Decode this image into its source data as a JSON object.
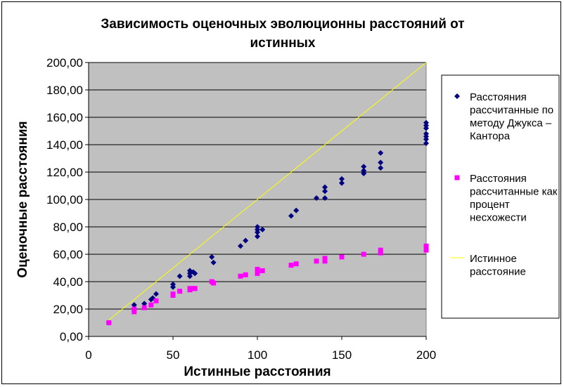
{
  "chart_data": {
    "type": "scatter",
    "title": "Зависимость оценочных эволюционны расстояний от истинных",
    "title_lines": [
      "Зависимость оценочных эволюционны расстояний от",
      "истинных"
    ],
    "xlabel": "Истинные расстояния",
    "ylabel": "Оценочные расстояния",
    "xlim": [
      0,
      200
    ],
    "ylim": [
      0,
      200
    ],
    "x_ticks": [
      0,
      50,
      100,
      150,
      200
    ],
    "x_tick_labels": [
      "0",
      "50",
      "100",
      "150",
      "200"
    ],
    "y_ticks": [
      0,
      20,
      40,
      60,
      80,
      100,
      120,
      140,
      160,
      180,
      200
    ],
    "y_tick_labels": [
      "0,00",
      "20,00",
      "40,00",
      "60,00",
      "80,00",
      "100,00",
      "120,00",
      "140,00",
      "160,00",
      "180,00",
      "200,00"
    ],
    "grid": "horizontal",
    "plot_background": "#c0c0c0",
    "legend_position": "right",
    "series": [
      {
        "name": "Расстояния рассчитанные по методу Джукса – Кантора",
        "legend_lines": [
          "Расстояния",
          "рассчитанные по",
          "методу Джукса –",
          "Кантора"
        ],
        "marker": "diamond",
        "color": "#000080",
        "points": [
          [
            12,
            10
          ],
          [
            27,
            23
          ],
          [
            27,
            20
          ],
          [
            33,
            24
          ],
          [
            37,
            27
          ],
          [
            38,
            28
          ],
          [
            40,
            31
          ],
          [
            50,
            38
          ],
          [
            50,
            36
          ],
          [
            54,
            44
          ],
          [
            60,
            48
          ],
          [
            60,
            46
          ],
          [
            60,
            44
          ],
          [
            62,
            47
          ],
          [
            63,
            46
          ],
          [
            73,
            58
          ],
          [
            74,
            54
          ],
          [
            90,
            66
          ],
          [
            93,
            70
          ],
          [
            100,
            80
          ],
          [
            100,
            78
          ],
          [
            100,
            76
          ],
          [
            100,
            73
          ],
          [
            103,
            78
          ],
          [
            120,
            88
          ],
          [
            123,
            92
          ],
          [
            135,
            101
          ],
          [
            140,
            109
          ],
          [
            140,
            106
          ],
          [
            140,
            101
          ],
          [
            150,
            115
          ],
          [
            150,
            112
          ],
          [
            163,
            124
          ],
          [
            163,
            121
          ],
          [
            163,
            119
          ],
          [
            173,
            134
          ],
          [
            173,
            127
          ],
          [
            173,
            123
          ],
          [
            200,
            156
          ],
          [
            200,
            154
          ],
          [
            200,
            152
          ],
          [
            200,
            148
          ],
          [
            200,
            146
          ],
          [
            200,
            144
          ],
          [
            200,
            141
          ]
        ]
      },
      {
        "name": "Расстояния рассчитанные как процент несхожести",
        "legend_lines": [
          "Расстояния",
          "рассчитанные как",
          "процент",
          "несхожести"
        ],
        "marker": "square",
        "color": "#ff00ff",
        "points": [
          [
            12,
            10
          ],
          [
            27,
            20
          ],
          [
            27,
            18
          ],
          [
            33,
            21
          ],
          [
            37,
            23
          ],
          [
            40,
            26
          ],
          [
            50,
            31
          ],
          [
            50,
            30
          ],
          [
            54,
            33
          ],
          [
            60,
            35
          ],
          [
            60,
            34
          ],
          [
            62,
            35
          ],
          [
            63,
            35
          ],
          [
            73,
            40
          ],
          [
            74,
            39
          ],
          [
            90,
            44
          ],
          [
            93,
            45
          ],
          [
            100,
            49
          ],
          [
            100,
            48
          ],
          [
            100,
            46
          ],
          [
            103,
            48
          ],
          [
            120,
            52
          ],
          [
            123,
            53
          ],
          [
            135,
            55
          ],
          [
            140,
            57
          ],
          [
            140,
            55
          ],
          [
            150,
            58
          ],
          [
            163,
            60
          ],
          [
            173,
            63
          ],
          [
            173,
            61
          ],
          [
            200,
            66
          ],
          [
            200,
            65
          ],
          [
            200,
            63
          ]
        ]
      },
      {
        "name": "Истинное расстояние",
        "legend_lines": [
          "Истинное",
          "расстояние"
        ],
        "marker": "line",
        "color": "#ffff00",
        "points": [
          [
            12,
            12
          ],
          [
            200,
            200
          ]
        ]
      }
    ]
  }
}
